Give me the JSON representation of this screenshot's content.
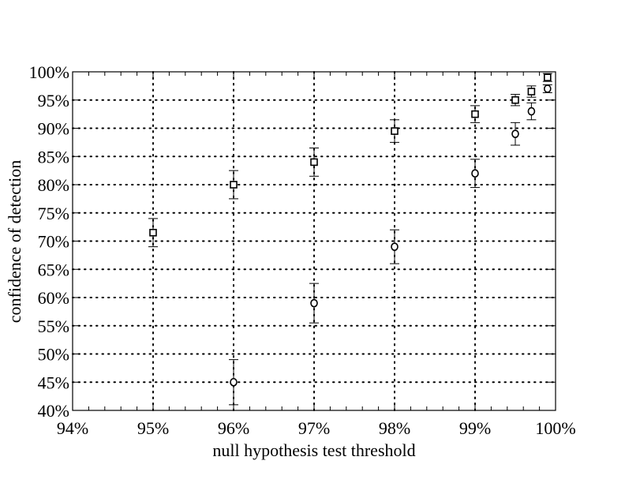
{
  "chart_data": {
    "type": "scatter",
    "title": "",
    "xlabel": "null hypothesis test threshold",
    "ylabel": "confidence of detection",
    "xlim": [
      94,
      100
    ],
    "ylim": [
      40,
      100
    ],
    "x_ticks": [
      94,
      95,
      96,
      97,
      98,
      99,
      100
    ],
    "x_tick_labels": [
      "94%",
      "95%",
      "96%",
      "97%",
      "98%",
      "99%",
      "100%"
    ],
    "y_ticks": [
      40,
      45,
      50,
      55,
      60,
      65,
      70,
      75,
      80,
      85,
      90,
      95,
      100
    ],
    "y_tick_labels": [
      "40%",
      "45%",
      "50%",
      "55%",
      "60%",
      "65%",
      "70%",
      "75%",
      "80%",
      "85%",
      "90%",
      "95%",
      "100%"
    ],
    "grid": true,
    "legend": false,
    "series": [
      {
        "marker": "square",
        "points": [
          {
            "x": 95.0,
            "y": 71.5,
            "lo": 69.0,
            "hi": 74.0
          },
          {
            "x": 96.0,
            "y": 80.0,
            "lo": 77.5,
            "hi": 82.5
          },
          {
            "x": 97.0,
            "y": 84.0,
            "lo": 81.5,
            "hi": 86.5
          },
          {
            "x": 98.0,
            "y": 89.5,
            "lo": 87.5,
            "hi": 91.5
          },
          {
            "x": 99.0,
            "y": 92.5,
            "lo": 91.0,
            "hi": 94.0
          },
          {
            "x": 99.5,
            "y": 95.0,
            "lo": 94.0,
            "hi": 96.0
          },
          {
            "x": 99.7,
            "y": 96.5,
            "lo": 95.5,
            "hi": 97.5
          },
          {
            "x": 99.9,
            "y": 99.0,
            "lo": 98.3,
            "hi": 99.7
          }
        ]
      },
      {
        "marker": "circle",
        "points": [
          {
            "x": 96.0,
            "y": 45.0,
            "lo": 41.0,
            "hi": 49.0
          },
          {
            "x": 97.0,
            "y": 59.0,
            "lo": 55.5,
            "hi": 62.5
          },
          {
            "x": 98.0,
            "y": 69.0,
            "lo": 66.0,
            "hi": 72.0
          },
          {
            "x": 99.0,
            "y": 82.0,
            "lo": 79.5,
            "hi": 84.5
          },
          {
            "x": 99.5,
            "y": 89.0,
            "lo": 87.0,
            "hi": 91.0
          },
          {
            "x": 99.7,
            "y": 93.0,
            "lo": 91.5,
            "hi": 94.5
          },
          {
            "x": 99.9,
            "y": 97.0,
            "lo": 96.3,
            "hi": 97.7
          }
        ]
      }
    ]
  }
}
